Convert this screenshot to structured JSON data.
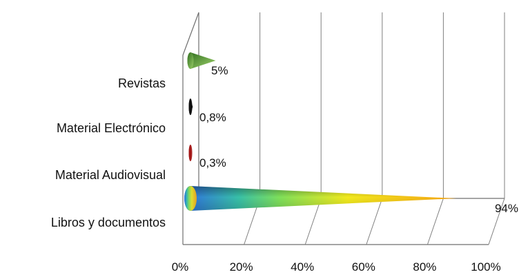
{
  "chart_data": {
    "type": "bar",
    "orientation": "horizontal",
    "style": "3d-cone",
    "categories": [
      "Revistas",
      "Material Electrónico",
      "Material Audiovisual",
      "Libros y documentos"
    ],
    "values": [
      5,
      0.8,
      0.3,
      94
    ],
    "data_labels": [
      "5%",
      "0,8%",
      "0,3%",
      "94%"
    ],
    "x_ticks": [
      "0%",
      "20%",
      "40%",
      "60%",
      "80%",
      "100%"
    ],
    "xlim": [
      0,
      100
    ],
    "grid": true,
    "legend": "none",
    "title": "",
    "xlabel": "",
    "ylabel": "",
    "colors": {
      "Revistas": "#5e9e3a",
      "Material Electrónico": "#111111",
      "Material Audiovisual": "#a31515",
      "Libros y documentos": "gradient:#2f6fe0,#3fd06a,#f2ea1e,#f6a312"
    }
  }
}
